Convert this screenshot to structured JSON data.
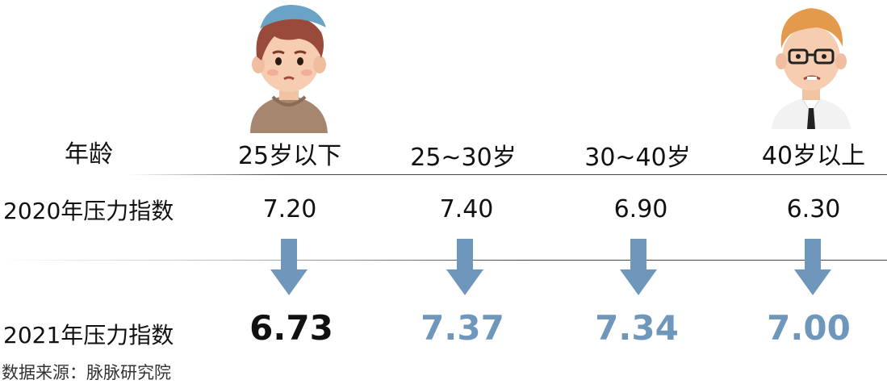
{
  "header": {
    "row_label": "年龄",
    "groups": [
      "25岁以下",
      "25~30岁",
      "30~40岁",
      "40岁以上"
    ]
  },
  "rows": {
    "r2020": {
      "label": "2020年压力指数",
      "values": [
        "7.20",
        "7.40",
        "6.90",
        "6.30"
      ]
    },
    "r2021": {
      "label": "2021年压力指数",
      "values": [
        "6.73",
        "7.37",
        "7.34",
        "7.00"
      ]
    }
  },
  "source": "数据来源：脉脉研究院",
  "colors": {
    "arrow": "#6f97bb",
    "value_highlight": "#111111",
    "value_blue": "#6f97bb"
  },
  "icons": {
    "avatars": [
      "young-man-worried-avatar",
      "man-glasses-smirk-avatar"
    ],
    "arrows": "down-arrow-icon"
  }
}
